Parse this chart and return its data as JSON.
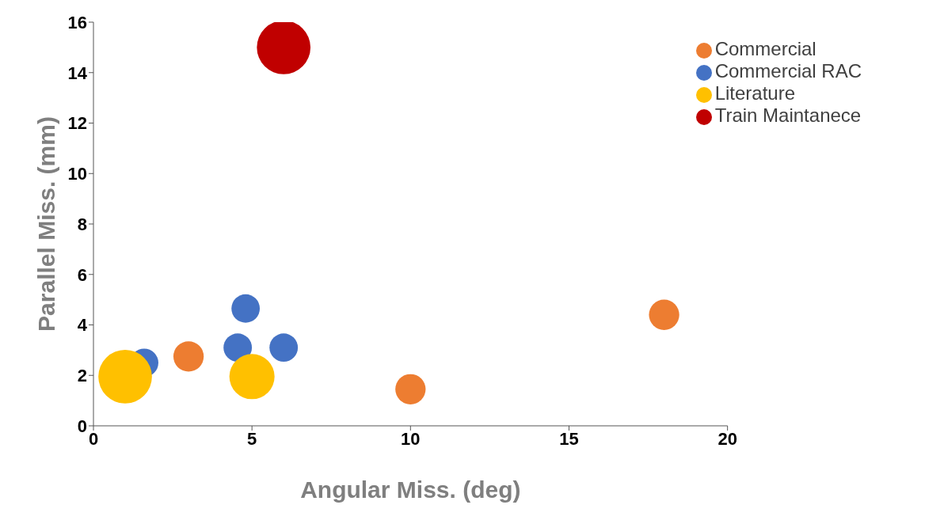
{
  "chart_data": {
    "type": "bubble",
    "xlabel": "Angular Miss. (deg)",
    "ylabel": "Parallel Miss. (mm)",
    "xlim": [
      0,
      20
    ],
    "xticks": [
      0,
      5,
      10,
      15,
      20
    ],
    "ylim": [
      0,
      16
    ],
    "yticks": [
      0,
      2,
      4,
      6,
      8,
      10,
      12,
      14,
      16
    ],
    "grid": false,
    "legend": "top right",
    "marker": "circle",
    "series": [
      {
        "name": "Train Maintanece",
        "color": "#c00000",
        "x": [
          6.0
        ],
        "values": [
          15.0
        ],
        "sizes": [
          1
        ]
      },
      {
        "name": "Commercial RAC",
        "color": "#4472c4",
        "x": [
          1.6,
          4.8,
          4.55,
          6.0
        ],
        "values": [
          2.5,
          4.65,
          3.1,
          3.1
        ],
        "sizes": [
          0.28,
          0.28,
          0.28,
          0.28
        ]
      },
      {
        "name": "Commercial",
        "color": "#ed7d31",
        "x": [
          3.0,
          10.0,
          18.0
        ],
        "values": [
          2.75,
          1.45,
          4.4
        ],
        "sizes": [
          0.32,
          0.32,
          0.32
        ]
      },
      {
        "name": "Literature",
        "color": "#ffc000",
        "x": [
          1.0,
          5.0
        ],
        "values": [
          1.95,
          1.95
        ],
        "sizes": [
          1,
          0.71
        ]
      }
    ]
  }
}
